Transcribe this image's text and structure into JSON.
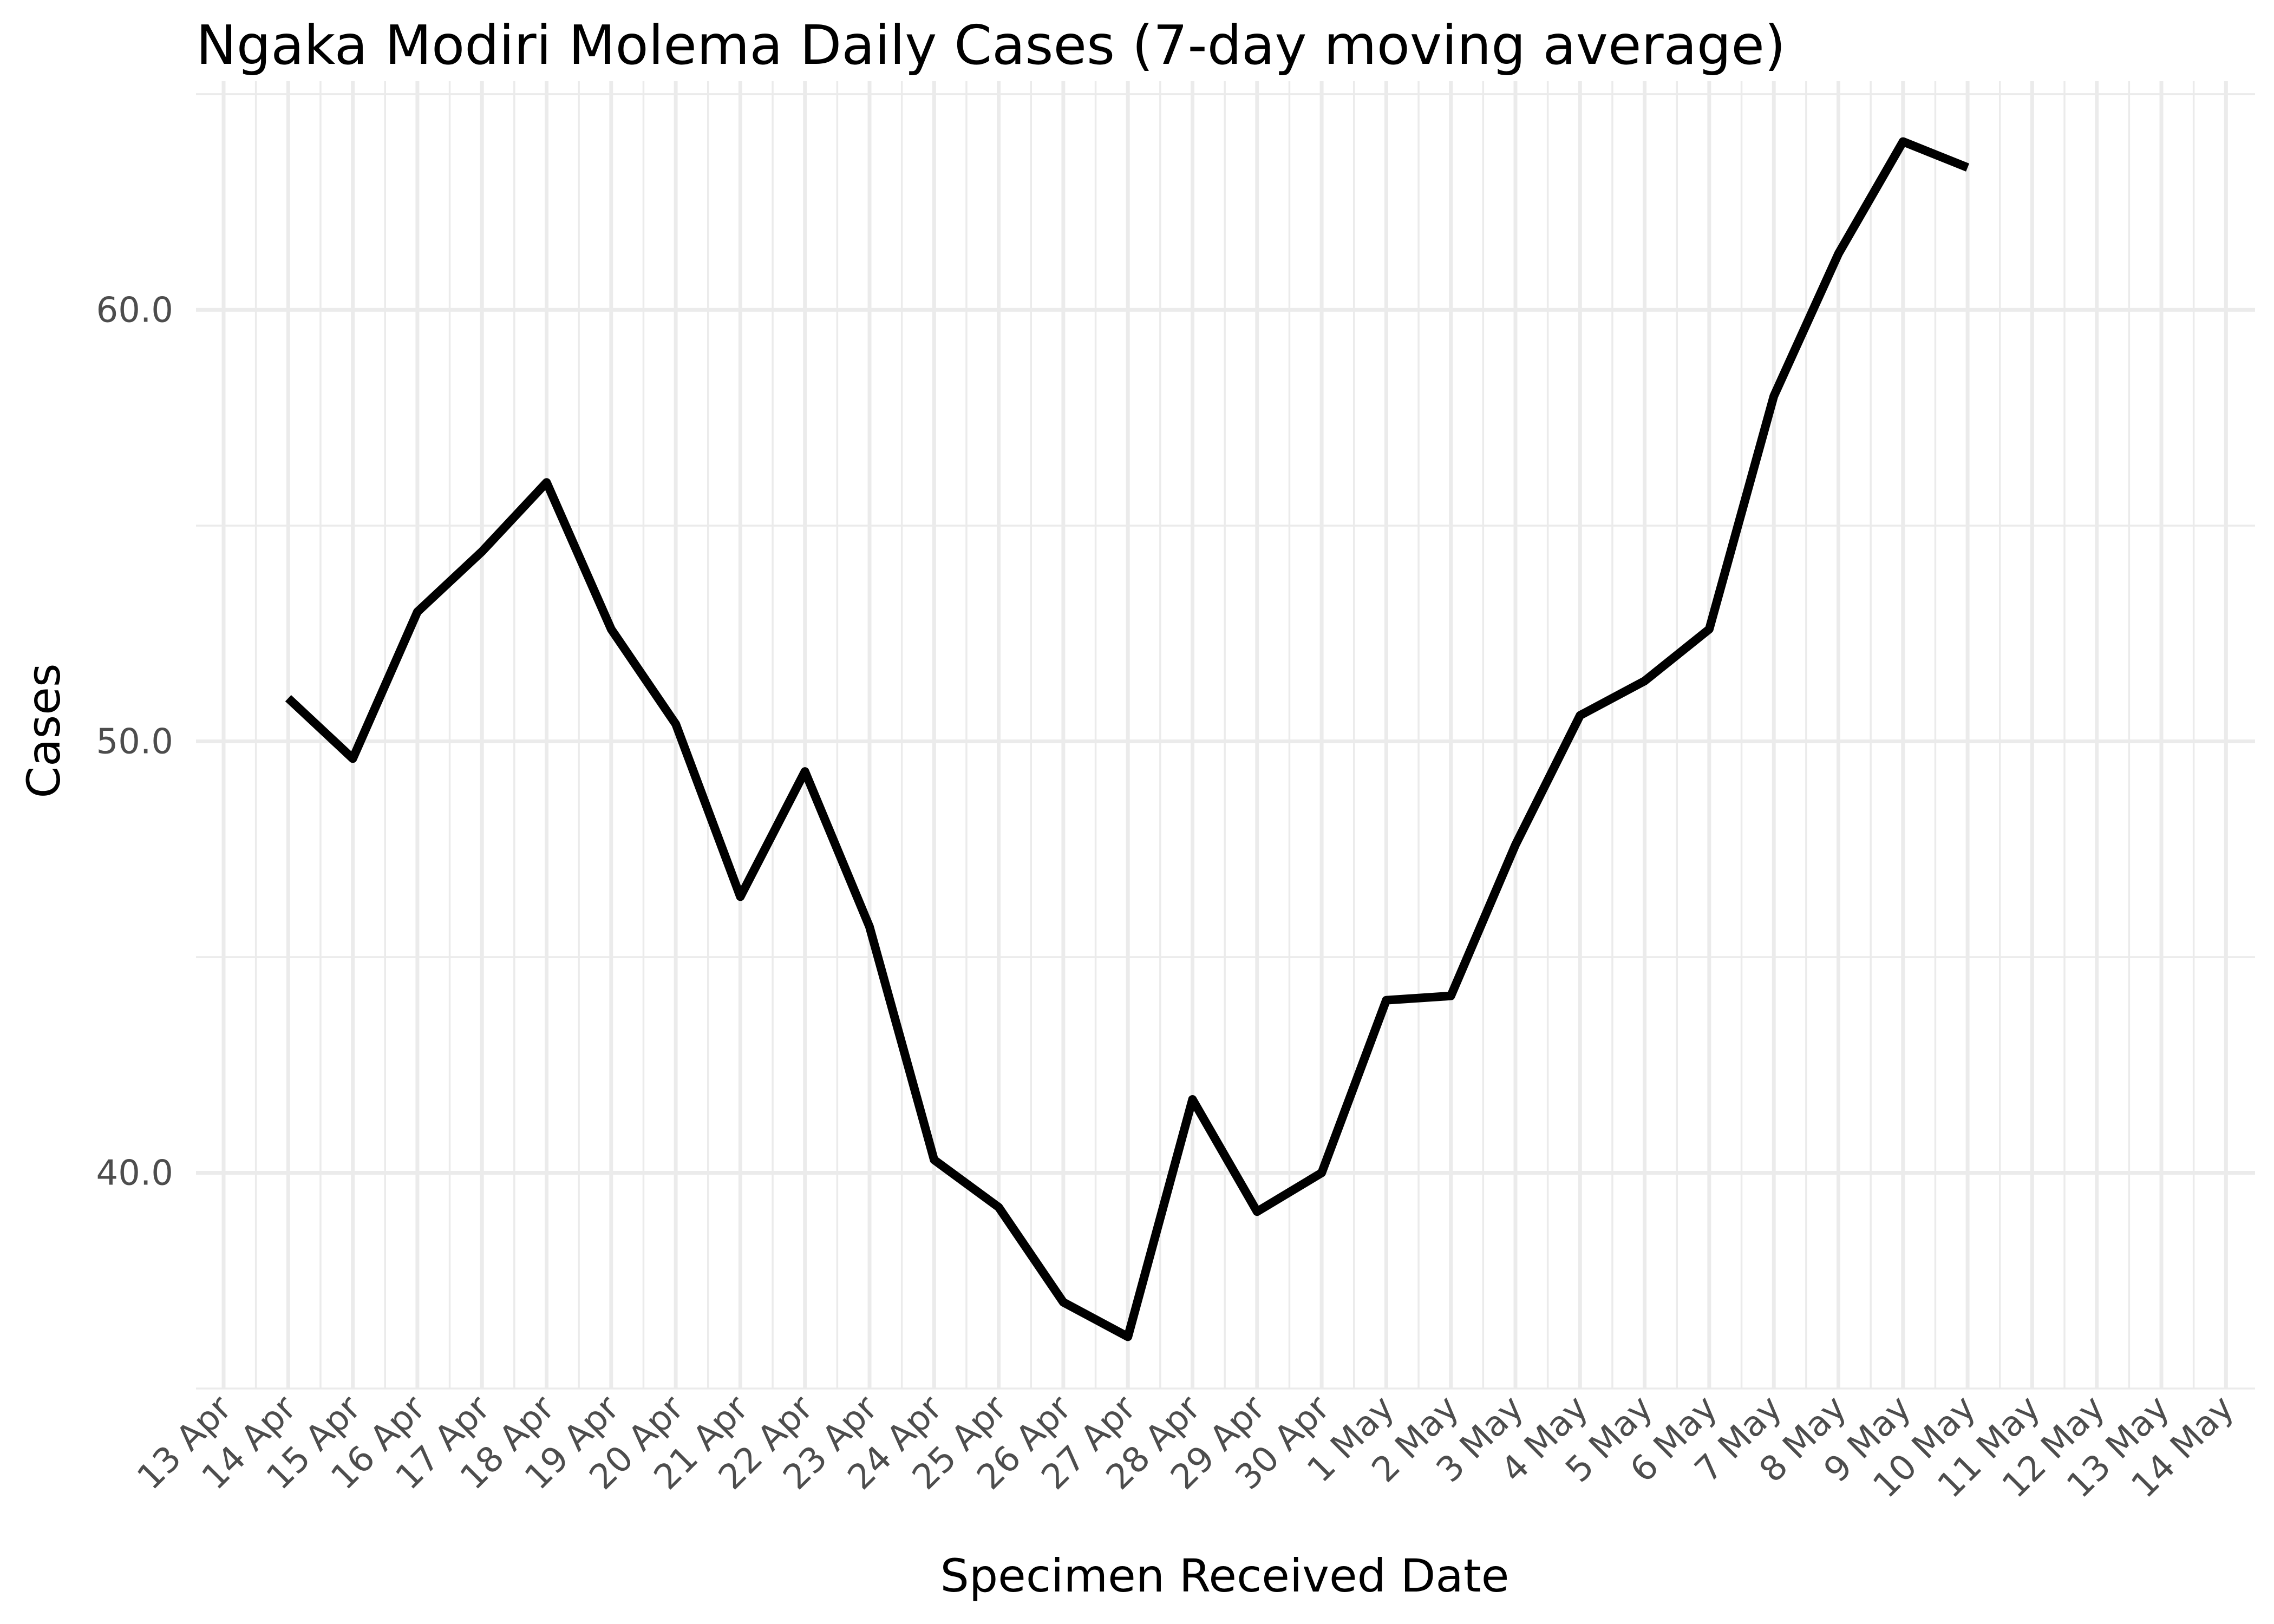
{
  "chart_data": {
    "type": "line",
    "title": "Ngaka Modiri Molema Daily Cases (7-day moving average)",
    "xlabel": "Specimen Received Date",
    "ylabel": "Cases",
    "x_tick_labels": [
      "13 Apr",
      "14 Apr",
      "15 Apr",
      "16 Apr",
      "17 Apr",
      "18 Apr",
      "19 Apr",
      "20 Apr",
      "21 Apr",
      "22 Apr",
      "23 Apr",
      "24 Apr",
      "25 Apr",
      "26 Apr",
      "27 Apr",
      "28 Apr",
      "29 Apr",
      "30 Apr",
      "1 May",
      "2 May",
      "3 May",
      "4 May",
      "5 May",
      "6 May",
      "7 May",
      "8 May",
      "9 May",
      "10 May",
      "11 May",
      "12 May",
      "13 May",
      "14 May"
    ],
    "y_ticks": [
      40,
      50,
      60
    ],
    "y_tick_labels": [
      "40.0",
      "50.0",
      "60.0"
    ],
    "ylim": [
      35.0,
      65.3
    ],
    "grid": true,
    "series": [
      {
        "color": "#000000",
        "x": [
          "14 Apr",
          "15 Apr",
          "16 Apr",
          "17 Apr",
          "18 Apr",
          "19 Apr",
          "20 Apr",
          "21 Apr",
          "22 Apr",
          "23 Apr",
          "24 Apr",
          "25 Apr",
          "26 Apr",
          "27 Apr",
          "28 Apr",
          "29 Apr",
          "30 Apr",
          "1 May",
          "2 May",
          "3 May",
          "4 May",
          "5 May",
          "6 May",
          "7 May",
          "8 May",
          "9 May",
          "10 May"
        ],
        "values": [
          51.0,
          49.6,
          53.0,
          54.4,
          56.0,
          52.6,
          50.4,
          46.4,
          49.3,
          45.7,
          40.3,
          39.2,
          37.0,
          36.2,
          41.7,
          39.1,
          40.0,
          44.0,
          44.1,
          47.6,
          50.6,
          51.4,
          52.6,
          58.0,
          61.3,
          63.9,
          63.3
        ]
      }
    ]
  }
}
